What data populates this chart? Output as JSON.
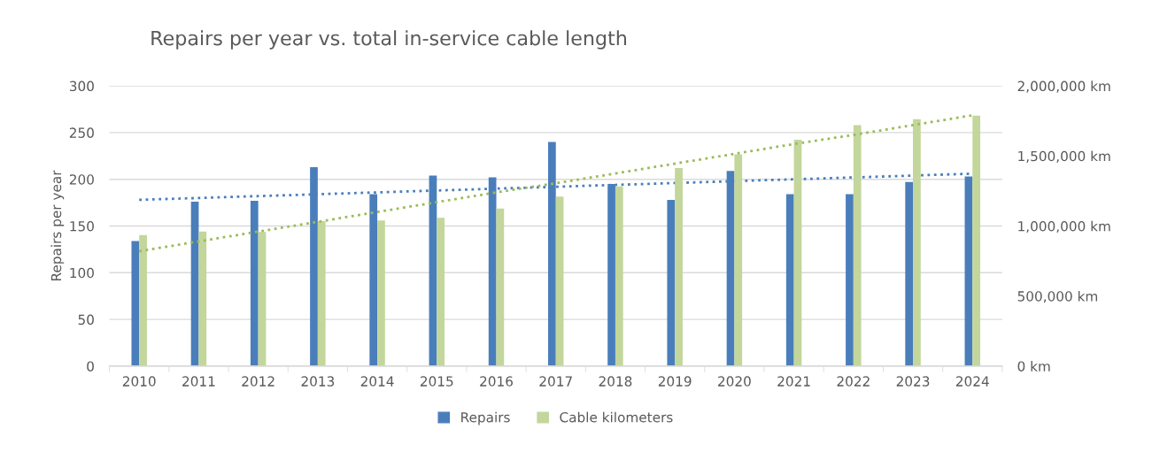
{
  "chart_data": {
    "type": "bar",
    "title": "Repairs per year vs. total in-service cable length",
    "ylabel": "Repairs per year",
    "categories": [
      "2010",
      "2011",
      "2012",
      "2013",
      "2014",
      "2015",
      "2016",
      "2017",
      "2018",
      "2019",
      "2020",
      "2021",
      "2022",
      "2023",
      "2024"
    ],
    "series": [
      {
        "name": "Repairs",
        "color": "#4a7ebb",
        "values": [
          134,
          176,
          177,
          213,
          184,
          204,
          202,
          240,
          195,
          178,
          209,
          184,
          184,
          197,
          203
        ]
      },
      {
        "name": "Cable kilometers",
        "color": "#c3d69b",
        "axis": "y2",
        "values": [
          935000,
          960000,
          957000,
          1034000,
          1040000,
          1058000,
          1125000,
          1210000,
          1282000,
          1413000,
          1511000,
          1615000,
          1719000,
          1762000,
          1787000
        ]
      },
      {
        "type": "line",
        "color": "#4a7ebb",
        "line_style": "dotted",
        "values": [
          178,
          180,
          182,
          184,
          186,
          188,
          190,
          192,
          194,
          196,
          198,
          200,
          202,
          204,
          206
        ]
      },
      {
        "type": "line",
        "color": "#9bbb59",
        "line_style": "dotted",
        "axis": "y2",
        "values": [
          820000,
          890000,
          960000,
          1030000,
          1100000,
          1170000,
          1240000,
          1305000,
          1375000,
          1445000,
          1515000,
          1585000,
          1650000,
          1720000,
          1790000
        ]
      }
    ],
    "ylim": [
      0,
      300
    ],
    "yticks": [
      0,
      50,
      100,
      150,
      200,
      250,
      300
    ],
    "y2lim": [
      0,
      2000000
    ],
    "y2ticks": [
      {
        "value": 0,
        "label": "0 km"
      },
      {
        "value": 500000,
        "label": "500,000 km"
      },
      {
        "value": 1000000,
        "label": "1,000,000 km"
      },
      {
        "value": 1500000,
        "label": "1,500,000 km"
      },
      {
        "value": 2000000,
        "label": "2,000,000 km"
      }
    ],
    "grid": "y",
    "legend": "bottom"
  }
}
